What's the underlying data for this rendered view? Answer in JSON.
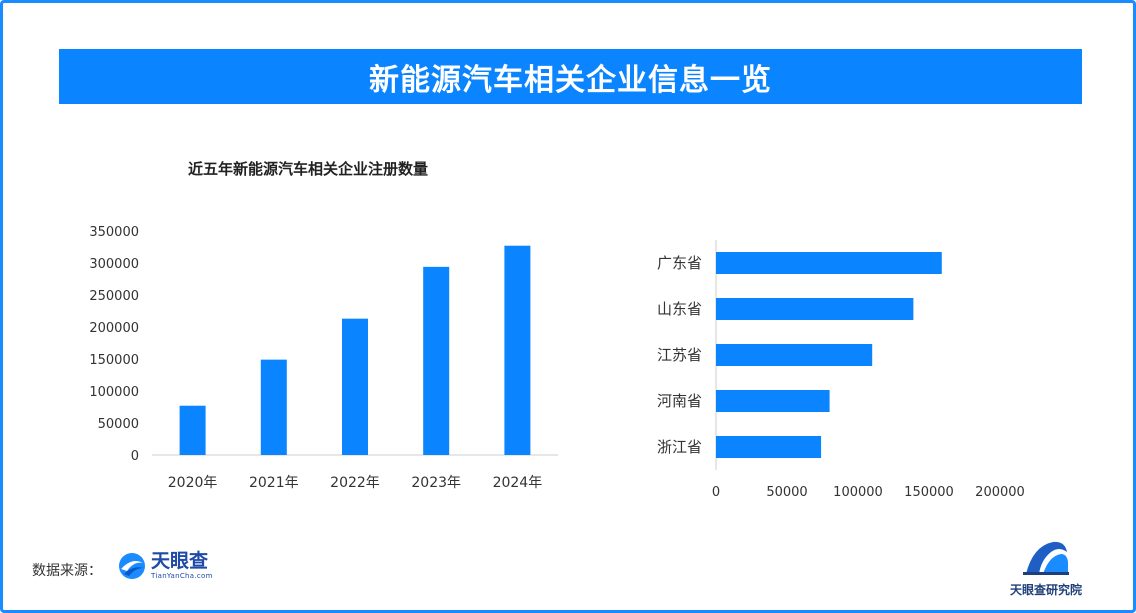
{
  "banner": {
    "title": "新能源汽车相关企业信息一览"
  },
  "chart_data": [
    {
      "type": "bar",
      "title": "近五年新能源汽车相关企业注册数量",
      "categories": [
        "2020年",
        "2021年",
        "2022年",
        "2023年",
        "2024年"
      ],
      "values": [
        77000,
        149000,
        213000,
        294000,
        327000
      ],
      "ylim": [
        0,
        350000
      ],
      "yticks": [
        0,
        50000,
        100000,
        150000,
        200000,
        250000,
        300000,
        350000
      ],
      "xlabel": "",
      "ylabel": "",
      "color": "#0a84ff",
      "grid": false
    },
    {
      "type": "bar",
      "orientation": "horizontal",
      "categories": [
        "广东省",
        "山东省",
        "江苏省",
        "河南省",
        "浙江省"
      ],
      "values": [
        159000,
        139000,
        110000,
        80000,
        74000
      ],
      "xlim": [
        0,
        200000
      ],
      "xticks": [
        0,
        50000,
        100000,
        150000,
        200000
      ],
      "color": "#0a84ff",
      "grid": false
    }
  ],
  "footer": {
    "source_label": "数据来源：",
    "source_logo_name": "天眼查",
    "source_logo_sub": "TianYanCha.com",
    "institute_name": "天眼查研究院"
  }
}
